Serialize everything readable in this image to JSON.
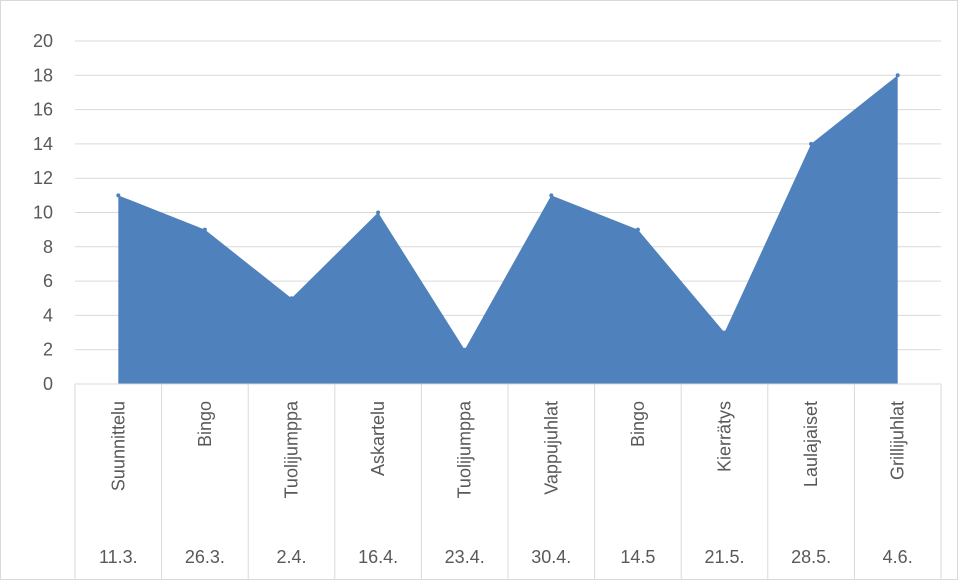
{
  "chart_data": {
    "type": "area",
    "title": "",
    "xlabel": "",
    "ylabel": "",
    "ylim": [
      0,
      20
    ],
    "yticks": [
      0,
      2,
      4,
      6,
      8,
      10,
      12,
      14,
      16,
      18,
      20
    ],
    "grid": true,
    "legend": "none",
    "categories": [
      {
        "activity": "Suunnittelu",
        "date": "11.3."
      },
      {
        "activity": "Bingo",
        "date": "26.3."
      },
      {
        "activity": "Tuolijumppa",
        "date": "2.4."
      },
      {
        "activity": "Askartelu",
        "date": "16.4."
      },
      {
        "activity": "Tuolijumppa",
        "date": "23.4."
      },
      {
        "activity": "Vappujuhlat",
        "date": "30.4."
      },
      {
        "activity": "Bingo",
        "date": "14.5"
      },
      {
        "activity": "Kierrätys",
        "date": "21.5."
      },
      {
        "activity": "Laulajaiset",
        "date": "28.5."
      },
      {
        "activity": "Grillijuhlat",
        "date": "4.6."
      }
    ],
    "series": [
      {
        "values": [
          11,
          9,
          5,
          10,
          2,
          11,
          9,
          3,
          14,
          18
        ],
        "color": "#4f81bd"
      }
    ],
    "colors": {
      "area": "#4f81bd",
      "grid": "#d9d9d9",
      "text": "#595959"
    }
  }
}
